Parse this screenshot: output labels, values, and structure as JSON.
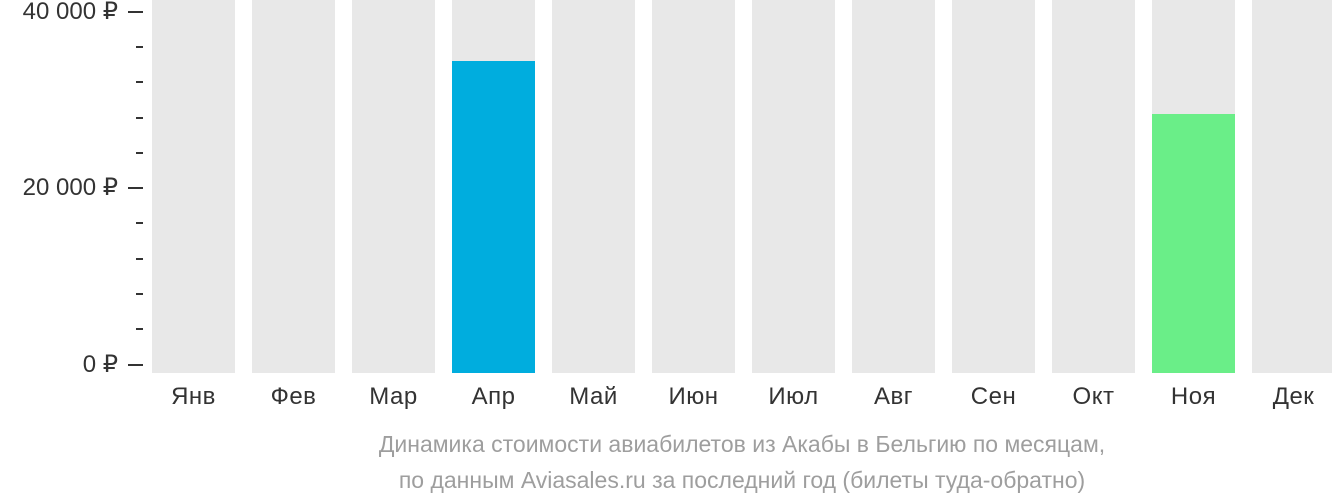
{
  "chart_data": {
    "type": "bar",
    "title": "Динамика стоимости авиабилетов из Акабы в Бельгию по месяцам,",
    "subtitle": "по данным Aviasales.ru за последний год (билеты туда-обратно)",
    "categories": [
      "Янв",
      "Фев",
      "Мар",
      "Апр",
      "Май",
      "Июн",
      "Июл",
      "Авг",
      "Сен",
      "Окт",
      "Ноя",
      "Дек"
    ],
    "values": [
      null,
      null,
      null,
      34400,
      null,
      null,
      null,
      null,
      null,
      null,
      28400,
      null
    ],
    "ylabel": "",
    "xlabel": "",
    "ylim": [
      0,
      40000
    ],
    "y_tick_labels": [
      "0 ₽",
      "20 000 ₽",
      "40 000 ₽"
    ],
    "y_major_ticks": [
      0,
      20000,
      40000
    ],
    "y_minor_tick_step": 4000,
    "legend": null,
    "grid": false,
    "currency": "₽",
    "colors": {
      "placeholder_bar": "#e8e8e8",
      "value_bar_blue": "#00adde",
      "value_bar_green": "#6aee88",
      "axis_text": "#333333",
      "caption_text": "#9e9e9e",
      "tick_mark": "#333333"
    },
    "bar_color_names": [
      null,
      null,
      null,
      "value_bar_blue",
      null,
      null,
      null,
      null,
      null,
      null,
      "value_bar_green",
      null
    ]
  },
  "caption": {
    "line1": "Динамика стоимости авиабилетов из Акабы в Бельгию по месяцам,",
    "line2": "по данным Aviasales.ru за последний год (билеты туда-обратно)"
  }
}
